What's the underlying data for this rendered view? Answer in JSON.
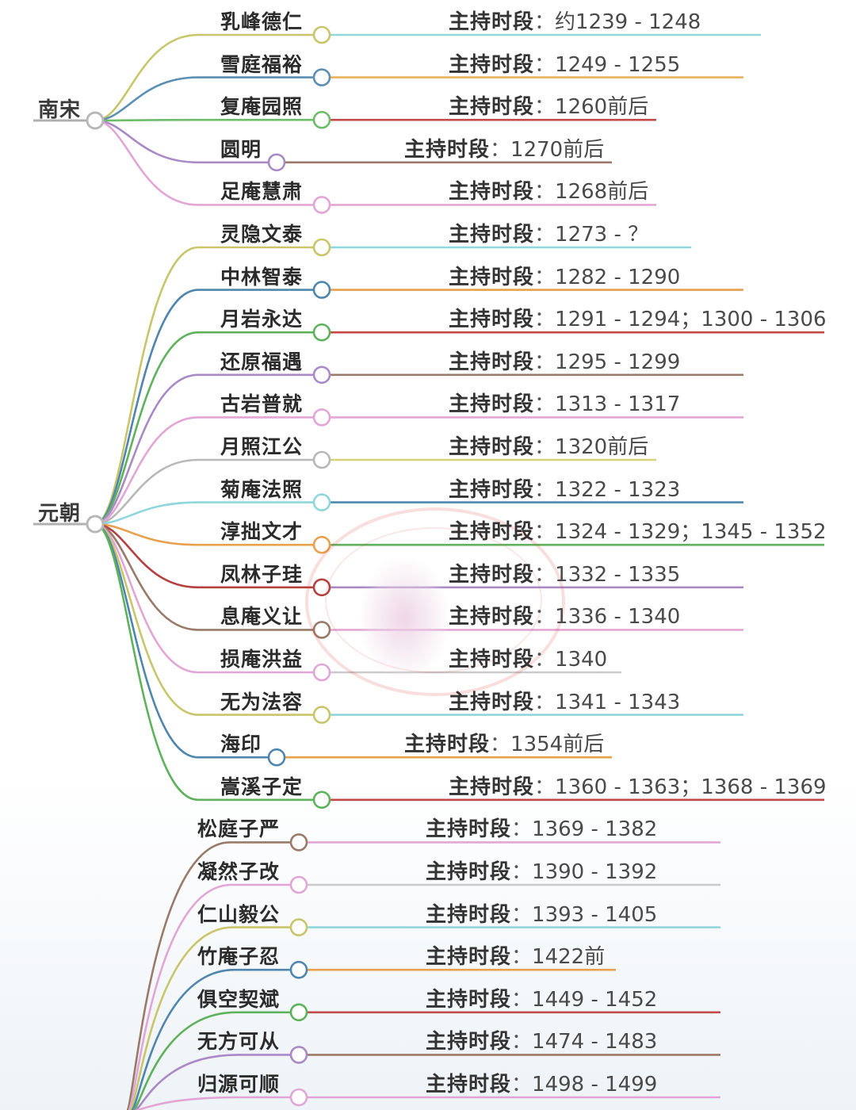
{
  "field_label": "主持时段",
  "separator": "：",
  "groups": [
    {
      "label": "南宋",
      "entries": [
        {
          "name": "乳峰德仁",
          "tenure": "约1239 - 1248",
          "branch_color": "#c9c56a",
          "line_color": "#8fd6dd"
        },
        {
          "name": "雪庭福裕",
          "tenure": "1249 - 1255",
          "branch_color": "#5b8fb3",
          "line_color": "#e8b25c"
        },
        {
          "name": "复庵园照",
          "tenure": "1260前后",
          "branch_color": "#6cbc6a",
          "line_color": "#c24a4a"
        },
        {
          "name": "圆明",
          "tenure": "1270前后",
          "branch_color": "#a98ac7",
          "line_color": "#9a7a68"
        },
        {
          "name": "足庵慧肃",
          "tenure": "1268前后",
          "branch_color": "#e2a6d6",
          "line_color": "#e2a6d6"
        }
      ]
    },
    {
      "label": "元朝",
      "entries": [
        {
          "name": "灵隐文泰",
          "tenure": "1273 - ？",
          "branch_color": "#c9c56a",
          "line_color": "#8fd6dd"
        },
        {
          "name": "中林智泰",
          "tenure": "1282 - 1290",
          "branch_color": "#4f86ad",
          "line_color": "#e8a04c"
        },
        {
          "name": "月岩永达",
          "tenure": "1291 - 1294；1300 - 1306",
          "branch_color": "#5fb25c",
          "line_color": "#c24a4a"
        },
        {
          "name": "还原福遇",
          "tenure": "1295 - 1299",
          "branch_color": "#a98ac7",
          "line_color": "#9a7a68"
        },
        {
          "name": "古岩普就",
          "tenure": "1313 - 1317",
          "branch_color": "#e2a6d6",
          "line_color": "#e2a6d6"
        },
        {
          "name": "月照江公",
          "tenure": "1320前后",
          "branch_color": "#b8b8b8",
          "line_color": "#d6d27a"
        },
        {
          "name": "菊庵法照",
          "tenure": "1322 - 1323",
          "branch_color": "#8fd6dd",
          "line_color": "#4f86ad"
        },
        {
          "name": "淳拙文才",
          "tenure": "1324 - 1329；1345 - 1352",
          "branch_color": "#e8a04c",
          "line_color": "#5fb25c"
        },
        {
          "name": "凤林子珪",
          "tenure": "1332 - 1335",
          "branch_color": "#b54040",
          "line_color": "#a98ac7"
        },
        {
          "name": "息庵义让",
          "tenure": "1336 - 1340",
          "branch_color": "#9a7a68",
          "line_color": "#e2a6d6"
        },
        {
          "name": "损庵洪益",
          "tenure": "1340",
          "branch_color": "#e2a6d6",
          "line_color": "#c9c9c9"
        },
        {
          "name": "无为法容",
          "tenure": "1341 - 1343",
          "branch_color": "#c9c56a",
          "line_color": "#8fd6dd"
        },
        {
          "name": "海印",
          "tenure": "1354前后",
          "branch_color": "#4f86ad",
          "line_color": "#e8a04c"
        },
        {
          "name": "嵩溪子定",
          "tenure": "1360 - 1363；1368 - 1369",
          "branch_color": "#5fb25c",
          "line_color": "#c24a4a"
        }
      ]
    },
    {
      "label": "",
      "entries": [
        {
          "name": "松庭子严",
          "tenure": "1369 - 1382",
          "branch_color": "#9a7a68",
          "line_color": "#e2a6d6"
        },
        {
          "name": "凝然子改",
          "tenure": "1390 - 1392",
          "branch_color": "#e2a6d6",
          "line_color": "#c9c9c9"
        },
        {
          "name": "仁山毅公",
          "tenure": "1393 - 1405",
          "branch_color": "#c9c56a",
          "line_color": "#8fd6dd"
        },
        {
          "name": "竹庵子忍",
          "tenure": "1422前",
          "branch_color": "#4f86ad",
          "line_color": "#e8a04c"
        },
        {
          "name": "俱空契斌",
          "tenure": "1449 - 1452",
          "branch_color": "#5fb25c",
          "line_color": "#c24a4a"
        },
        {
          "name": "无方可从",
          "tenure": "1474 - 1483",
          "branch_color": "#a98ac7",
          "line_color": "#9a7a68"
        },
        {
          "name": "归源可顺",
          "tenure": "1498 - 1499",
          "branch_color": "#e2a6d6",
          "line_color": "#e2a6d6"
        }
      ]
    }
  ]
}
